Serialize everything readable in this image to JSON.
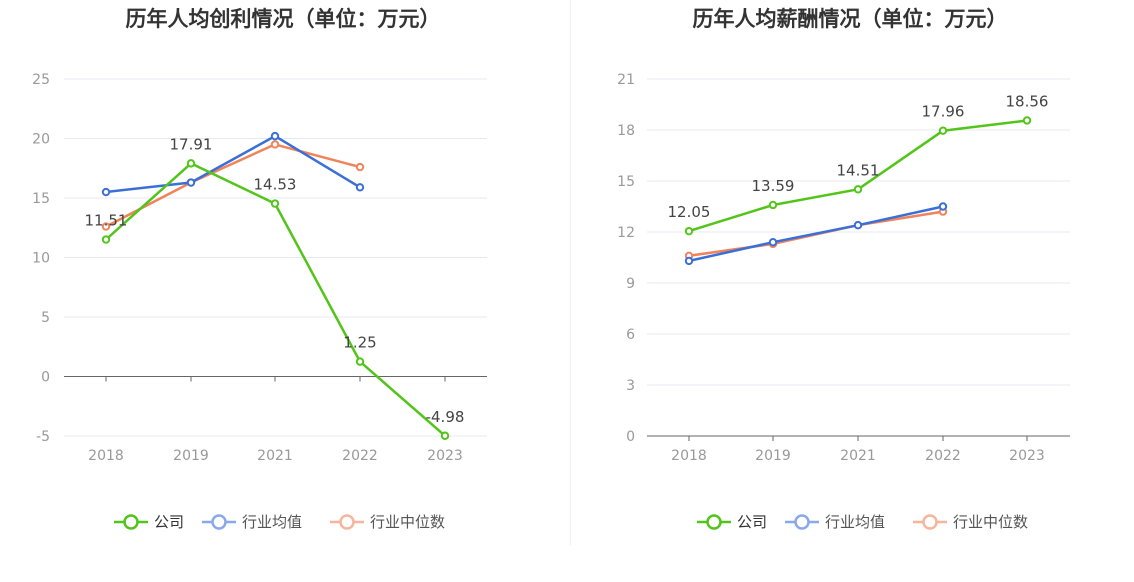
{
  "chart_data": [
    {
      "type": "line",
      "title": "历年人均创利情况（单位：万元）",
      "categories": [
        "2018",
        "2019",
        "2021",
        "2022",
        "2023"
      ],
      "ylim": [
        -5,
        25
      ],
      "yticks": [
        "-5",
        "0",
        "5",
        "10",
        "15",
        "20",
        "25"
      ],
      "grid": true,
      "legend_position": "bottom",
      "series": [
        {
          "name": "公司",
          "color": "#52c41a",
          "values": [
            11.51,
            17.91,
            14.53,
            1.25,
            -4.98
          ],
          "labels": [
            "11.51",
            "17.91",
            "14.53",
            "1.25",
            "-4.98"
          ]
        },
        {
          "name": "行业均值",
          "color": "#3a6fd8",
          "values": [
            15.5,
            16.3,
            20.2,
            15.9,
            null
          ]
        },
        {
          "name": "行业中位数",
          "color": "#f0835a",
          "values": [
            12.6,
            16.3,
            19.5,
            17.6,
            null
          ]
        }
      ]
    },
    {
      "type": "line",
      "title": "历年人均薪酬情况（单位：万元）",
      "categories": [
        "2018",
        "2019",
        "2021",
        "2022",
        "2023"
      ],
      "ylim": [
        0,
        21
      ],
      "yticks": [
        "0",
        "3",
        "6",
        "9",
        "12",
        "15",
        "18",
        "21"
      ],
      "grid": true,
      "legend_position": "bottom",
      "series": [
        {
          "name": "公司",
          "color": "#52c41a",
          "values": [
            12.05,
            13.59,
            14.51,
            17.96,
            18.56
          ],
          "labels": [
            "12.05",
            "13.59",
            "14.51",
            "17.96",
            "18.56"
          ]
        },
        {
          "name": "行业均值",
          "color": "#3a6fd8",
          "values": [
            10.3,
            11.4,
            12.4,
            13.5,
            null
          ]
        },
        {
          "name": "行业中位数",
          "color": "#f0835a",
          "values": [
            10.6,
            11.3,
            12.4,
            13.2,
            null
          ]
        }
      ]
    }
  ]
}
